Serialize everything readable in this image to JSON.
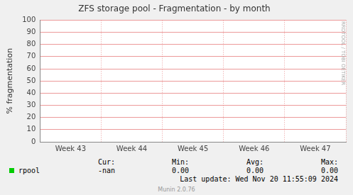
{
  "chart_data": {
    "type": "line",
    "title": "ZFS storage pool - Fragmentation - by month",
    "y_label": "% fragmentation",
    "categories": [
      "Week 43",
      "Week 44",
      "Week 45",
      "Week 46",
      "Week 47"
    ],
    "series": [
      {
        "name": "rpool",
        "color": "#00cc00",
        "values": [
          null,
          null,
          null,
          null,
          0
        ]
      }
    ],
    "ylim": [
      0,
      100
    ],
    "yticks": [
      0,
      10,
      20,
      30,
      40,
      50,
      60,
      70,
      80,
      90,
      100
    ],
    "grid": true,
    "legend_table": {
      "headers": [
        "Cur:",
        "Min:",
        "Avg:",
        "Max:"
      ],
      "rows": [
        {
          "name": "rpool",
          "cells": [
            "-nan",
            "0.00",
            "0.00",
            "0.00"
          ]
        }
      ]
    },
    "footer": "Last update: Wed Nov 20 11:55:09 2024",
    "credit": "Munin 2.0.76",
    "watermark": "RRDTOOL / TOBI OETIKER"
  }
}
